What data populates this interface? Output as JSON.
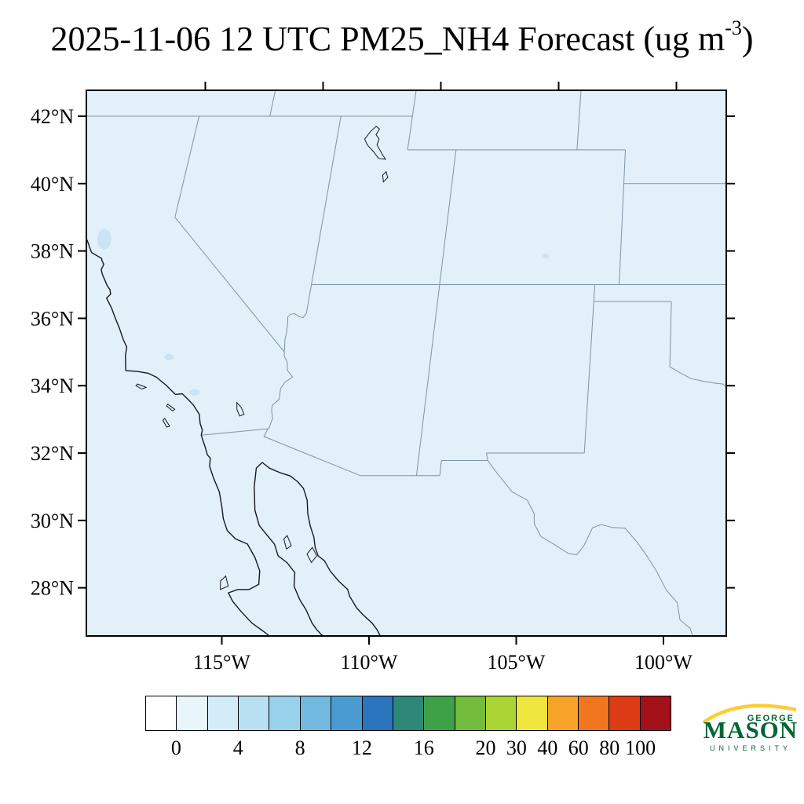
{
  "title": {
    "main": "2025-11-06 12 UTC PM25_NH4 Forecast (ug m",
    "sup": "-3",
    "close": ")"
  },
  "axes": {
    "left": [
      {
        "label": "42°N",
        "lat": 42
      },
      {
        "label": "40°N",
        "lat": 40
      },
      {
        "label": "38°N",
        "lat": 38
      },
      {
        "label": "36°N",
        "lat": 36
      },
      {
        "label": "34°N",
        "lat": 34
      },
      {
        "label": "32°N",
        "lat": 32
      },
      {
        "label": "30°N",
        "lat": 30
      },
      {
        "label": "28°N",
        "lat": 28
      }
    ],
    "bottom": [
      {
        "label": "115°W",
        "lon": -115
      },
      {
        "label": "110°W",
        "lon": -110
      },
      {
        "label": "105°W",
        "lon": -105
      },
      {
        "label": "100°W",
        "lon": -100
      }
    ],
    "top_lons": [
      -120,
      -115,
      -110,
      -105,
      -100
    ],
    "right_lats": [
      42,
      40,
      38,
      36,
      34,
      32,
      30,
      28
    ]
  },
  "map": {
    "bg": "#e2f0f9",
    "patch_color": "#c9e4f4",
    "border_color": "#7d93a4",
    "coast_color": "#16191d",
    "frame_color": "#000000",
    "coastlines": [
      [
        [
          -123.7,
          38.75
        ],
        [
          -123.45,
          38.5
        ],
        [
          -123.25,
          38.3
        ],
        [
          -123.0,
          38.0
        ],
        [
          -122.95,
          37.95
        ],
        [
          -122.5,
          37.78
        ],
        [
          -122.45,
          37.7
        ],
        [
          -122.35,
          37.6
        ],
        [
          -122.4,
          37.45
        ],
        [
          -122.3,
          37.3
        ],
        [
          -122.0,
          36.97
        ],
        [
          -121.85,
          36.85
        ],
        [
          -121.78,
          36.72
        ],
        [
          -121.9,
          36.6
        ],
        [
          -121.6,
          36.3
        ],
        [
          -121.4,
          36.05
        ],
        [
          -121.1,
          35.7
        ],
        [
          -120.85,
          35.37
        ],
        [
          -120.65,
          35.15
        ],
        [
          -120.62,
          34.9
        ],
        [
          -120.47,
          34.45
        ],
        [
          -120.0,
          34.42
        ],
        [
          -119.6,
          34.37
        ],
        [
          -119.25,
          34.25
        ],
        [
          -118.8,
          34.0
        ],
        [
          -118.4,
          33.74
        ],
        [
          -118.15,
          33.76
        ],
        [
          -117.9,
          33.6
        ],
        [
          -117.65,
          33.43
        ],
        [
          -117.35,
          33.15
        ],
        [
          -117.25,
          32.88
        ],
        [
          -117.12,
          32.68
        ],
        [
          -117.12,
          32.53
        ],
        [
          -116.9,
          32.2
        ],
        [
          -116.75,
          31.95
        ],
        [
          -116.62,
          31.85
        ],
        [
          -116.58,
          31.6
        ],
        [
          -116.35,
          31.25
        ],
        [
          -116.05,
          30.85
        ],
        [
          -115.85,
          30.4
        ],
        [
          -115.72,
          30.05
        ],
        [
          -115.5,
          29.7
        ],
        [
          -115.15,
          29.45
        ],
        [
          -114.7,
          29.3
        ],
        [
          -114.35,
          28.9
        ],
        [
          -114.1,
          28.5
        ],
        [
          -114.05,
          28.1
        ],
        [
          -114.35,
          27.95
        ],
        [
          -114.75,
          27.95
        ],
        [
          -115.05,
          27.85
        ],
        [
          -114.85,
          27.6
        ],
        [
          -114.5,
          27.3
        ],
        [
          -114.05,
          26.95
        ],
        [
          -113.6,
          26.7
        ],
        [
          -113.35,
          26.55
        ]
      ],
      [
        [
          -111.55,
          26.55
        ],
        [
          -111.8,
          26.75
        ],
        [
          -112.0,
          26.95
        ],
        [
          -112.28,
          27.35
        ],
        [
          -112.55,
          27.65
        ],
        [
          -112.82,
          28.05
        ],
        [
          -112.87,
          28.45
        ],
        [
          -113.2,
          28.75
        ],
        [
          -113.55,
          28.95
        ],
        [
          -113.75,
          29.3
        ],
        [
          -114.05,
          29.55
        ],
        [
          -114.4,
          29.85
        ],
        [
          -114.65,
          30.3
        ],
        [
          -114.83,
          31.0
        ],
        [
          -114.88,
          31.55
        ],
        [
          -114.7,
          31.72
        ],
        [
          -114.4,
          31.55
        ],
        [
          -114.0,
          31.42
        ],
        [
          -113.6,
          31.32
        ],
        [
          -113.3,
          31.15
        ],
        [
          -113.05,
          30.95
        ],
        [
          -112.85,
          30.6
        ],
        [
          -112.75,
          30.2
        ],
        [
          -112.6,
          29.85
        ],
        [
          -112.4,
          29.5
        ],
        [
          -112.3,
          29.2
        ],
        [
          -112.15,
          28.95
        ],
        [
          -111.9,
          28.8
        ],
        [
          -111.65,
          28.5
        ],
        [
          -111.3,
          28.2
        ],
        [
          -110.95,
          27.95
        ],
        [
          -110.85,
          27.75
        ],
        [
          -110.55,
          27.4
        ],
        [
          -110.3,
          27.2
        ],
        [
          -109.95,
          26.95
        ],
        [
          -109.75,
          26.75
        ],
        [
          -109.6,
          26.55
        ]
      ]
    ],
    "islands": [
      [
        [
          -115.25,
          28.35
        ],
        [
          -115.1,
          28.05
        ],
        [
          -115.35,
          27.95
        ],
        [
          -115.4,
          28.2
        ],
        [
          -115.25,
          28.35
        ]
      ],
      [
        [
          -112.4,
          29.2
        ],
        [
          -112.2,
          28.95
        ],
        [
          -112.35,
          28.75
        ],
        [
          -112.55,
          29.0
        ],
        [
          -112.4,
          29.2
        ]
      ],
      [
        [
          -113.35,
          29.55
        ],
        [
          -113.15,
          29.25
        ],
        [
          -113.3,
          29.15
        ],
        [
          -113.45,
          29.45
        ],
        [
          -113.35,
          29.55
        ]
      ],
      [
        [
          -118.6,
          33.45
        ],
        [
          -118.3,
          33.3
        ],
        [
          -118.37,
          33.25
        ],
        [
          -118.63,
          33.4
        ],
        [
          -118.6,
          33.45
        ]
      ],
      [
        [
          -119.9,
          34.05
        ],
        [
          -119.55,
          33.95
        ],
        [
          -119.7,
          33.9
        ],
        [
          -119.95,
          34.0
        ],
        [
          -119.9,
          34.05
        ]
      ],
      [
        [
          -118.6,
          33.03
        ],
        [
          -118.35,
          32.8
        ],
        [
          -118.45,
          32.77
        ],
        [
          -118.65,
          32.97
        ],
        [
          -118.6,
          33.03
        ]
      ]
    ],
    "borders": [
      [
        [
          -124.73,
          42
        ],
        [
          -111.05,
          42
        ]
      ],
      [
        [
          -111.05,
          42.77
        ],
        [
          -111.05,
          41
        ]
      ],
      [
        [
          -111.05,
          41
        ],
        [
          -102.05,
          41
        ]
      ],
      [
        [
          -104.05,
          42.77
        ],
        [
          -104.05,
          41
        ]
      ],
      [
        [
          -102.05,
          40
        ],
        [
          -97.85,
          40
        ]
      ],
      [
        [
          -102.05,
          41
        ],
        [
          -102.05,
          37
        ]
      ],
      [
        [
          -114.05,
          42
        ],
        [
          -114.05,
          37
        ]
      ],
      [
        [
          -109.05,
          41
        ],
        [
          -109.05,
          37
        ]
      ],
      [
        [
          -114.05,
          37
        ],
        [
          -97.85,
          37
        ]
      ],
      [
        [
          -109.05,
          37
        ],
        [
          -109.05,
          31.33
        ]
      ],
      [
        [
          -120,
          39
        ],
        [
          -114.63,
          35.0
        ]
      ],
      [
        [
          -120,
          42
        ],
        [
          -120,
          39
        ]
      ],
      [
        [
          -117.03,
          42.77
        ],
        [
          -117.03,
          42
        ]
      ],
      [
        [
          -114.05,
          37
        ],
        [
          -114.05,
          36.15
        ],
        [
          -114.15,
          36.02
        ],
        [
          -114.33,
          36.06
        ],
        [
          -114.5,
          36.14
        ],
        [
          -114.65,
          36.12
        ],
        [
          -114.74,
          36.05
        ],
        [
          -114.7,
          35.85
        ],
        [
          -114.68,
          35.6
        ],
        [
          -114.69,
          35.35
        ],
        [
          -114.65,
          35.15
        ],
        [
          -114.63,
          35.0
        ],
        [
          -114.6,
          34.87
        ],
        [
          -114.45,
          34.7
        ],
        [
          -114.38,
          34.45
        ],
        [
          -114.15,
          34.26
        ],
        [
          -114.4,
          34.1
        ],
        [
          -114.52,
          33.92
        ],
        [
          -114.5,
          33.6
        ],
        [
          -114.72,
          33.41
        ],
        [
          -114.71,
          33.28
        ],
        [
          -114.62,
          33.03
        ],
        [
          -114.68,
          32.74
        ],
        [
          -114.72,
          32.72
        ]
      ],
      [
        [
          -103.0,
          37
        ],
        [
          -103.04,
          32.0
        ]
      ],
      [
        [
          -103.0,
          36.5
        ],
        [
          -100.0,
          36.5
        ]
      ],
      [
        [
          -100.0,
          36.5
        ],
        [
          -100.0,
          34.56
        ]
      ],
      [
        [
          -100.0,
          34.56
        ],
        [
          -99.6,
          34.38
        ],
        [
          -99.2,
          34.21
        ],
        [
          -98.7,
          34.13
        ],
        [
          -98.35,
          34.08
        ],
        [
          -98.0,
          34.05
        ],
        [
          -97.85,
          33.95
        ]
      ],
      [
        [
          -103.04,
          32
        ],
        [
          -106.6,
          32
        ]
      ],
      [
        [
          -106.6,
          32
        ],
        [
          -106.53,
          31.78
        ]
      ],
      [
        [
          -106.53,
          31.78
        ],
        [
          -108.21,
          31.78
        ]
      ],
      [
        [
          -108.21,
          31.78
        ],
        [
          -108.21,
          31.33
        ]
      ],
      [
        [
          -108.21,
          31.33
        ],
        [
          -111.07,
          31.33
        ]
      ],
      [
        [
          -111.07,
          31.33
        ],
        [
          -114.81,
          32.49
        ],
        [
          -114.72,
          32.72
        ]
      ],
      [
        [
          -114.72,
          32.72
        ],
        [
          -117.12,
          32.53
        ]
      ],
      [
        [
          -106.53,
          31.78
        ],
        [
          -106.2,
          31.45
        ],
        [
          -105.55,
          30.85
        ],
        [
          -104.98,
          30.6
        ],
        [
          -104.7,
          30.2
        ],
        [
          -104.67,
          29.9
        ],
        [
          -104.4,
          29.52
        ],
        [
          -103.9,
          29.28
        ],
        [
          -103.4,
          29.02
        ],
        [
          -103.1,
          28.98
        ],
        [
          -102.87,
          29.25
        ],
        [
          -102.6,
          29.78
        ],
        [
          -102.3,
          29.88
        ],
        [
          -101.9,
          29.79
        ],
        [
          -101.45,
          29.77
        ],
        [
          -101.0,
          29.35
        ],
        [
          -100.65,
          28.95
        ],
        [
          -100.3,
          28.5
        ],
        [
          -99.95,
          27.95
        ],
        [
          -99.55,
          27.55
        ],
        [
          -99.45,
          27.05
        ],
        [
          -99.1,
          26.8
        ],
        [
          -99.0,
          26.55
        ]
      ]
    ],
    "lakes": [
      [
        [
          -112.9,
          41.32
        ],
        [
          -112.7,
          41.55
        ],
        [
          -112.5,
          41.7
        ],
        [
          -112.35,
          41.62
        ],
        [
          -112.45,
          41.45
        ],
        [
          -112.3,
          41.32
        ],
        [
          -112.35,
          41.15
        ],
        [
          -112.2,
          41.0
        ],
        [
          -112.05,
          40.85
        ],
        [
          -111.9,
          40.72
        ],
        [
          -112.2,
          40.75
        ],
        [
          -112.45,
          40.95
        ],
        [
          -112.6,
          41.05
        ],
        [
          -112.75,
          41.15
        ],
        [
          -112.9,
          41.32
        ]
      ],
      [
        [
          -111.8,
          40.35
        ],
        [
          -111.7,
          40.18
        ],
        [
          -111.85,
          40.05
        ],
        [
          -111.92,
          40.25
        ],
        [
          -111.8,
          40.35
        ]
      ],
      [
        [
          -116.05,
          33.5
        ],
        [
          -115.85,
          33.35
        ],
        [
          -115.7,
          33.15
        ],
        [
          -115.85,
          33.1
        ],
        [
          -116.0,
          33.3
        ],
        [
          -116.05,
          33.5
        ]
      ]
    ],
    "patches": [
      {
        "lon": -122.6,
        "lat": 38.35,
        "rx": 9,
        "ry": 13
      },
      {
        "lon": -118.95,
        "lat": 34.85,
        "rx": 6,
        "ry": 4
      },
      {
        "lon": -117.7,
        "lat": 33.8,
        "rx": 7,
        "ry": 4
      },
      {
        "lon": -105.0,
        "lat": 37.85,
        "rx": 4,
        "ry": 3
      }
    ]
  },
  "colorbar": {
    "colors": [
      "#ffffff",
      "#e8f5fb",
      "#d2ecf8",
      "#b7e1f3",
      "#97d1ec",
      "#72b9e0",
      "#4b9bd3",
      "#2a75bd",
      "#2e8877",
      "#3ea047",
      "#74bc3b",
      "#abd435",
      "#eee63d",
      "#f7a32a",
      "#f2761d",
      "#dc3b16",
      "#a31218"
    ],
    "labels": [
      {
        "text": "0",
        "b": 1
      },
      {
        "text": "4",
        "b": 3
      },
      {
        "text": "8",
        "b": 5
      },
      {
        "text": "12",
        "b": 7
      },
      {
        "text": "16",
        "b": 9
      },
      {
        "text": "20",
        "b": 11
      },
      {
        "text": "30",
        "b": 12
      },
      {
        "text": "40",
        "b": 13
      },
      {
        "text": "60",
        "b": 14
      },
      {
        "text": "80",
        "b": 15
      },
      {
        "text": "100",
        "b": 16
      }
    ]
  },
  "logo": {
    "line1": "GEORGE",
    "line2": "MASON",
    "line3": "UNIVERSITY",
    "green": "#006633",
    "gold": "#ffcc33"
  },
  "chart_data": {
    "type": "heatmap",
    "title": "2025-11-06 12 UTC PM25_NH4 Forecast (ug m-3)",
    "variable": "PM2.5 ammonium (NH4) concentration forecast",
    "units": "ug m-3",
    "forecast_time": "2025-11-06 12 UTC",
    "region": "Southwestern United States and northern Mexico",
    "lon_range": [
      -119.6,
      -97.9
    ],
    "lat_range": [
      26.6,
      42.8
    ],
    "x_tick_labels": [
      "115°W",
      "110°W",
      "105°W",
      "100°W"
    ],
    "y_tick_labels": [
      "42°N",
      "40°N",
      "38°N",
      "36°N",
      "34°N",
      "32°N",
      "30°N",
      "28°N"
    ],
    "levels": [
      0,
      2,
      4,
      6,
      8,
      10,
      12,
      14,
      16,
      18,
      20,
      30,
      40,
      60,
      80,
      100
    ],
    "colorbar_tick_labels": [
      0,
      4,
      8,
      12,
      16,
      20,
      30,
      40,
      60,
      80,
      100
    ],
    "palette": [
      "#ffffff",
      "#e8f5fb",
      "#d2ecf8",
      "#b7e1f3",
      "#97d1ec",
      "#72b9e0",
      "#4b9bd3",
      "#2a75bd",
      "#2e8877",
      "#3ea047",
      "#74bc3b",
      "#abd435",
      "#eee63d",
      "#f7a32a",
      "#f2761d",
      "#dc3b16",
      "#a31218"
    ],
    "field_summary": "Concentrations near 0-2 ug/m3 over the entire domain, with small 2-4 ug/m3 patches along coastal northern California, the southern California coast and valleys, and a tiny spot in southern Colorado",
    "legend_position": "bottom",
    "grid": false
  }
}
